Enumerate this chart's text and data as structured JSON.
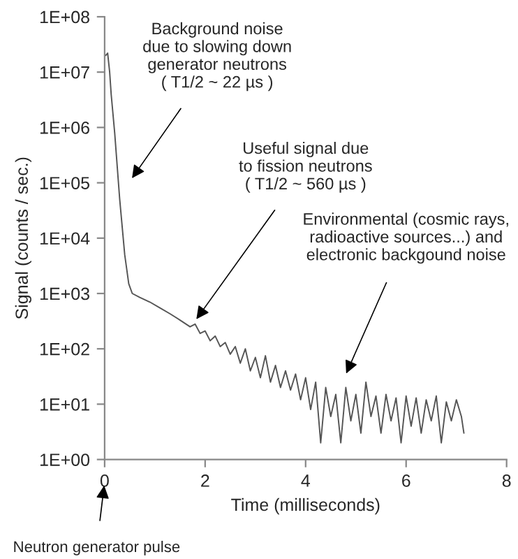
{
  "chart_data": {
    "type": "line",
    "xlabel": "Time (milliseconds)",
    "ylabel": "Signal (counts / sec.)",
    "log": true,
    "grid": false,
    "marker": "none",
    "line_style": "solid",
    "xlim": [
      0,
      8
    ],
    "xticks": [
      0,
      2,
      4,
      6,
      8
    ],
    "ylim": [
      1,
      100000000
    ],
    "yticks": [
      {
        "value": 1,
        "label": "1E+00"
      },
      {
        "value": 10,
        "label": "1E+01"
      },
      {
        "value": 100,
        "label": "1E+02"
      },
      {
        "value": 1000,
        "label": "1E+03"
      },
      {
        "value": 10000,
        "label": "1E+04"
      },
      {
        "value": 100000,
        "label": "1E+05"
      },
      {
        "value": 1000000,
        "label": "1E+06"
      },
      {
        "value": 10000000,
        "label": "1E+07"
      },
      {
        "value": 100000000,
        "label": "1E+08"
      }
    ],
    "series": [
      {
        "color": "#555555",
        "x": [
          0.02,
          0.06,
          0.1,
          0.13,
          0.2,
          0.3,
          0.4,
          0.48,
          0.55,
          0.7,
          0.9,
          1.1,
          1.3,
          1.5,
          1.7,
          1.8,
          1.9,
          2.0,
          2.1,
          2.2,
          2.3,
          2.4,
          2.5,
          2.6,
          2.7,
          2.8,
          2.9,
          3.0,
          3.1,
          3.2,
          3.3,
          3.4,
          3.5,
          3.6,
          3.7,
          3.8,
          3.9,
          4.0,
          4.1,
          4.2,
          4.3,
          4.4,
          4.5,
          4.6,
          4.7,
          4.8,
          4.9,
          5.0,
          5.1,
          5.2,
          5.3,
          5.4,
          5.5,
          5.6,
          5.7,
          5.8,
          5.9,
          6.0,
          6.1,
          6.2,
          6.3,
          6.4,
          6.5,
          6.6,
          6.7,
          6.8,
          6.9,
          7.0,
          7.1,
          7.15
        ],
        "values": [
          20000000,
          22000000,
          10000000,
          4000000,
          800000,
          50000,
          5000,
          1500,
          1000,
          850,
          700,
          550,
          430,
          330,
          250,
          280,
          190,
          210,
          140,
          170,
          110,
          130,
          80,
          110,
          55,
          100,
          40,
          70,
          30,
          75,
          25,
          50,
          20,
          40,
          18,
          35,
          12,
          30,
          8,
          25,
          2,
          20,
          6,
          15,
          2,
          20,
          5,
          15,
          3,
          25,
          6,
          14,
          3,
          15,
          5,
          13,
          2,
          14,
          4,
          13,
          3,
          12,
          5,
          14,
          2,
          11,
          5,
          12,
          6,
          3
        ]
      }
    ],
    "annotations": [
      "Background noise\ndue to slowing down\ngenerator neutrons\n( T1/2 ~ 22 µs )",
      {
        "text": "Useful signal due\nto fission neutrons\n( T1/2 ~ 560 µs )",
        "x": 1.78,
        "y": 300
      },
      "Environmental (cosmic rays,\nradioactive sources...) and\nelectronic backgound noise",
      "Neutron generator pulse"
    ]
  }
}
